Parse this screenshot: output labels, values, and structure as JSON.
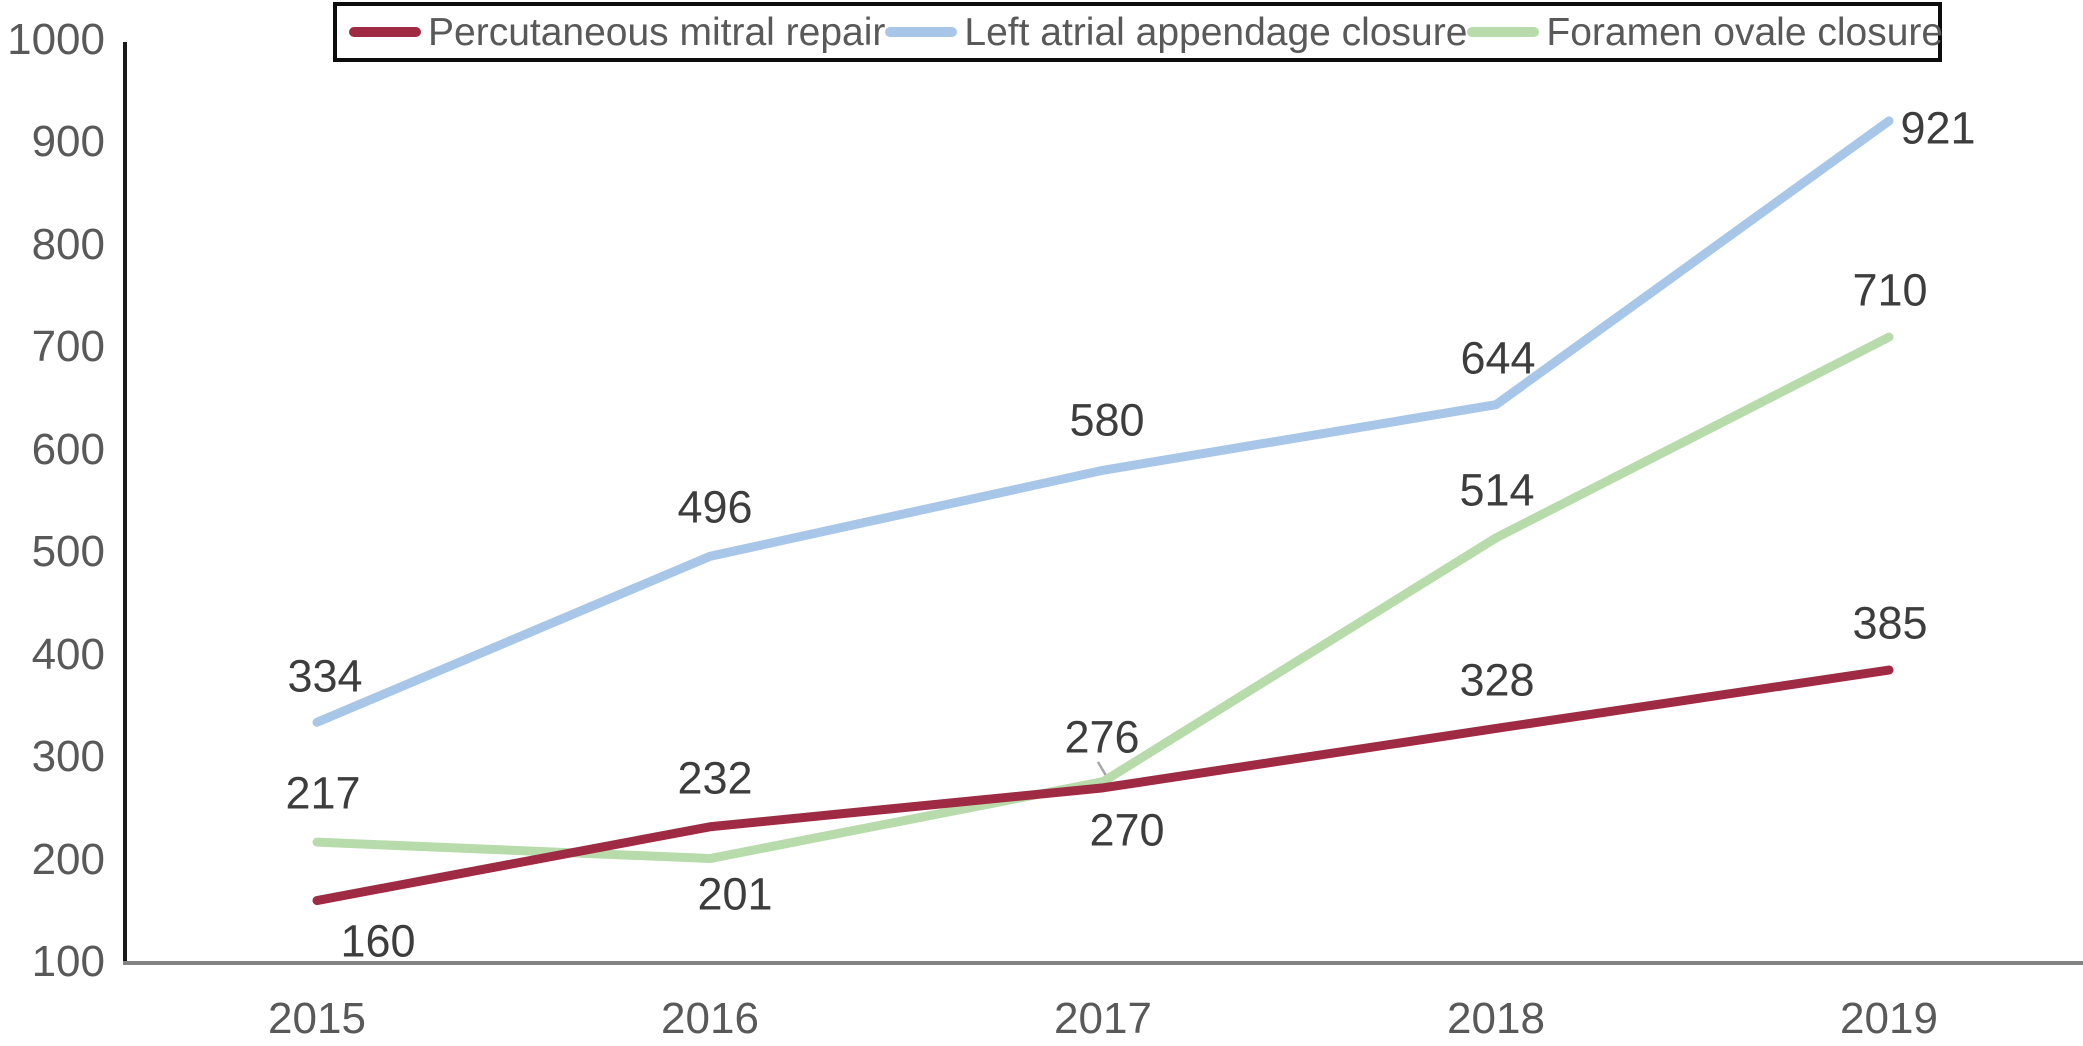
{
  "chart_data": {
    "type": "line",
    "title": "",
    "xlabel": "",
    "ylabel": "",
    "categories": [
      "2015",
      "2016",
      "2017",
      "2018",
      "2019"
    ],
    "series": [
      {
        "name": "Percutaneous mitral repair",
        "color": "#9e2b43",
        "values": [
          160,
          232,
          270,
          328,
          385
        ]
      },
      {
        "name": "Left atrial appendage closure",
        "color": "#a8c7e8",
        "values": [
          334,
          496,
          580,
          644,
          921
        ]
      },
      {
        "name": "Foramen ovale closure",
        "color": "#b7dbaa",
        "values": [
          217,
          201,
          276,
          514,
          710
        ]
      }
    ],
    "ylim": [
      100,
      1000
    ],
    "yticks": [
      1000,
      900,
      800,
      700,
      600,
      500,
      400,
      300,
      200,
      100
    ],
    "grid": false,
    "data_labels": true,
    "legend_position": "top"
  },
  "colors": {
    "y_axis": "#1a1a1a",
    "x_axis": "#838383",
    "tick_label": "#595959",
    "data_label": "#3d3d3d",
    "legend_text": "#595959",
    "legend_border": "#0d0d0d",
    "leader_line": "#a6a6a6",
    "background": "#ffffff"
  }
}
